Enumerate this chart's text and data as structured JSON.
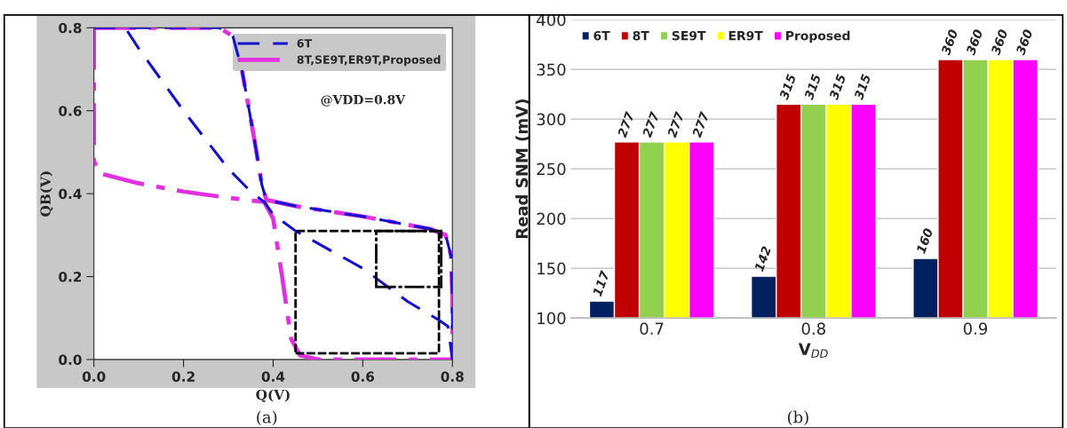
{
  "chart_data": [
    {
      "type": "line",
      "xlabel": "Q(V)",
      "ylabel": "QB(V)",
      "xlim": [
        0,
        0.8
      ],
      "ylim": [
        0,
        0.8
      ],
      "xticks": [
        {
          "value": 0,
          "label": "0.0"
        },
        0.2,
        0.4,
        0.6,
        0.8
      ],
      "yticks": [
        {
          "value": 0,
          "label": "0.0"
        },
        0.2,
        0.4,
        0.6,
        0.8
      ],
      "grid": false,
      "legend": "top right",
      "annotations": [
        "@VDD=0.8V",
        "(a)"
      ],
      "series": [
        {
          "name": "6T",
          "color": "#1010d0",
          "line_style": "dashed",
          "x": [
            0,
            0.07,
            0.1,
            0.2,
            0.3,
            0.35,
            0.38,
            0.4,
            0.45,
            0.6,
            0.7,
            0.77,
            0.79,
            0.8,
            null,
            0,
            0.28,
            0.31,
            0.33,
            0.355,
            0.375,
            0.385,
            0.45,
            0.6,
            0.75,
            0.785,
            0.797,
            0.8,
            0.8
          ],
          "values": [
            0.8,
            0.8,
            0.75,
            0.6,
            0.46,
            0.405,
            0.38,
            0.35,
            0.31,
            0.22,
            0.14,
            0.095,
            0.08,
            0.0,
            null,
            0.8,
            0.8,
            0.78,
            0.7,
            0.55,
            0.42,
            0.385,
            0.37,
            0.345,
            0.315,
            0.3,
            0.25,
            0.15,
            0.0
          ]
        },
        {
          "name": "8T,SE9T,ER9T,Proposed",
          "color": "#e030e0",
          "line_style": "dashdot",
          "x": [
            0,
            0.28,
            0.31,
            0.33,
            0.355,
            0.375,
            0.385,
            0.45,
            0.6,
            0.75,
            0.785,
            0.797,
            0.8,
            0.8,
            null,
            0,
            0,
            0.01,
            0.1,
            0.2,
            0.3,
            0.38,
            0.4,
            0.42,
            0.44,
            0.46,
            0.5,
            0.8
          ],
          "values": [
            0.8,
            0.8,
            0.78,
            0.7,
            0.55,
            0.42,
            0.385,
            0.37,
            0.345,
            0.315,
            0.3,
            0.25,
            0.15,
            0.0,
            null,
            0.8,
            0.48,
            0.45,
            0.425,
            0.405,
            0.39,
            0.38,
            0.34,
            0.2,
            0.05,
            0.01,
            0.0,
            0.0
          ]
        }
      ]
    },
    {
      "type": "bar",
      "xlabel": "V$_{DD}$",
      "ylabel": "Read SNM (mV)",
      "categories": [
        "0.7",
        "0.8",
        "0.9"
      ],
      "ylim": [
        100,
        400
      ],
      "yticks": [
        100,
        150,
        200,
        250,
        300,
        350,
        400
      ],
      "grid": "y",
      "legend": "top left",
      "data_labels": true,
      "annotations": [
        "(b)"
      ],
      "series": [
        {
          "name": "6T",
          "color": "#002060",
          "values": [
            117,
            142,
            160
          ]
        },
        {
          "name": "8T",
          "color": "#c00000",
          "values": [
            277,
            315,
            360
          ]
        },
        {
          "name": "SE9T",
          "color": "#92d050",
          "values": [
            277,
            315,
            360
          ]
        },
        {
          "name": "ER9T",
          "color": "#ffff00",
          "values": [
            277,
            315,
            360
          ]
        },
        {
          "name": "Proposed",
          "color": "#ff00ff",
          "values": [
            277,
            315,
            360
          ]
        }
      ]
    }
  ]
}
